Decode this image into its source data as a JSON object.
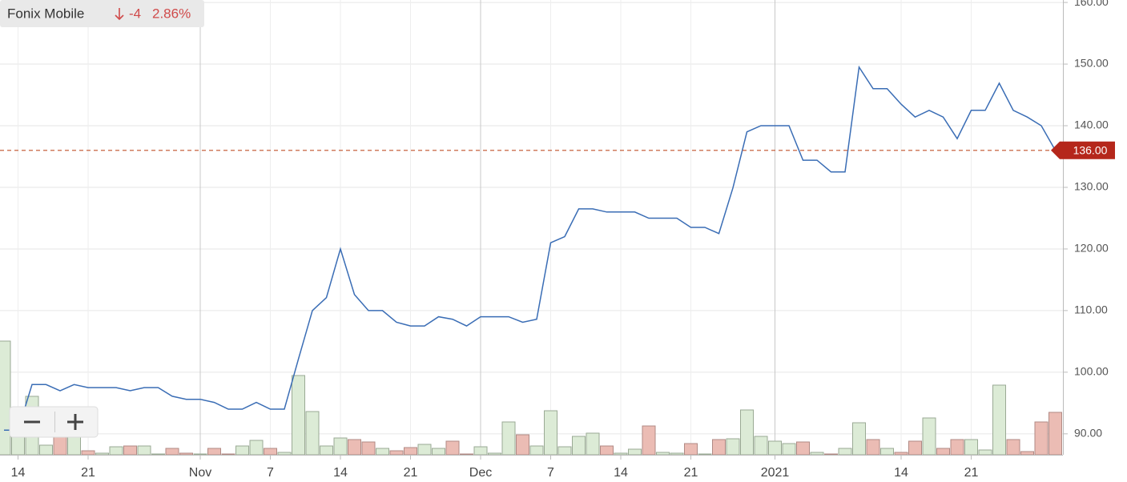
{
  "chart_data": {
    "type": "line",
    "title": "Fonix Mobile",
    "change": "-4",
    "change_percent": "2.86%",
    "categories": [
      null,
      "14",
      null,
      null,
      null,
      null,
      "21",
      null,
      null,
      null,
      null,
      null,
      null,
      null,
      "Nov",
      null,
      null,
      null,
      null,
      "7",
      null,
      null,
      null,
      null,
      "14",
      null,
      null,
      null,
      null,
      "21",
      null,
      null,
      null,
      null,
      "Dec",
      null,
      null,
      null,
      null,
      "7",
      null,
      null,
      null,
      null,
      "14",
      null,
      null,
      null,
      null,
      "21",
      null,
      null,
      null,
      null,
      null,
      "2021",
      null,
      null,
      null,
      null,
      null,
      null,
      null,
      null,
      "14",
      null,
      null,
      null,
      null,
      "21",
      null,
      null,
      null,
      null,
      null,
      null
    ],
    "month_categories": [
      "Nov",
      "Dec",
      "2021"
    ],
    "series": [
      {
        "name": "Fonix Mobile",
        "color": "#3a6db5",
        "values": [
          90.6,
          90.6,
          98.0,
          98.0,
          97.0,
          98.0,
          97.5,
          97.5,
          97.5,
          97.0,
          97.5,
          97.5,
          96.1,
          95.6,
          95.6,
          95.1,
          94.0,
          94.0,
          95.1,
          94.0,
          94.0,
          102.1,
          110.0,
          112.1,
          120.0,
          112.6,
          110.0,
          110.0,
          108.1,
          107.5,
          107.5,
          109.0,
          108.6,
          107.5,
          109.0,
          109.0,
          109.0,
          108.1,
          108.6,
          121.0,
          122.0,
          126.5,
          126.5,
          126.0,
          126.0,
          126.0,
          125.0,
          125.0,
          125.0,
          123.5,
          123.5,
          122.5,
          129.9,
          139.0,
          140.0,
          140.0,
          140.0,
          134.4,
          134.4,
          132.5,
          132.5,
          149.5,
          146.0,
          146.0,
          143.5,
          141.4,
          142.5,
          141.4,
          137.9,
          142.5,
          142.5,
          146.9,
          142.5,
          141.4,
          140.0,
          136.0
        ]
      }
    ],
    "volume": {
      "up_color": "#dcebd6",
      "down_color": "#ebbcb4",
      "lim": [
        0,
        568
      ],
      "values": [
        142,
        23,
        73,
        12,
        60,
        23,
        5,
        2,
        10,
        11,
        11,
        1,
        8,
        2,
        1,
        8,
        1,
        11,
        18,
        8,
        3,
        99,
        54,
        11,
        21,
        19,
        16,
        8,
        5,
        9,
        13,
        8,
        17,
        1,
        10,
        2,
        41,
        25,
        11,
        55,
        10,
        23,
        27,
        11,
        2,
        7,
        36,
        3,
        2,
        14,
        1,
        19,
        20,
        56,
        23,
        17,
        14,
        16,
        3,
        1,
        8,
        40,
        19,
        8,
        3,
        17,
        46,
        8,
        19,
        19,
        6,
        87,
        19,
        4,
        41,
        53
      ]
    },
    "ylim": [
      86.6,
      160.4
    ],
    "yticks": [
      {
        "value": 90,
        "label": "90.00"
      },
      {
        "value": 100,
        "label": "100.00"
      },
      {
        "value": 110,
        "label": "110.00"
      },
      {
        "value": 120,
        "label": "120.00"
      },
      {
        "value": 130,
        "label": "130.00"
      },
      {
        "value": 140,
        "label": "140.00"
      },
      {
        "value": 150,
        "label": "150.00"
      },
      {
        "value": 160,
        "label": "160.00"
      }
    ],
    "price_line": {
      "value": 136,
      "label": "136.00",
      "color": "#c0502a"
    },
    "grid": true
  }
}
